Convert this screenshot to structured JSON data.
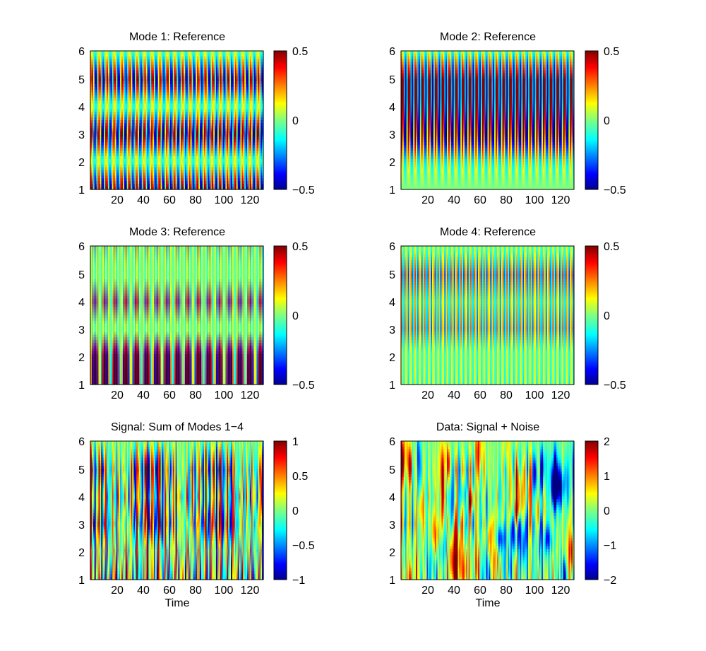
{
  "figure": {
    "background": "#ffffff",
    "colormap": "jet",
    "colormap_stops": [
      "#00008f",
      "#0000ff",
      "#00ffff",
      "#ffff00",
      "#ff0000",
      "#800000"
    ]
  },
  "chart_data": [
    {
      "type": "heatmap",
      "title": "Mode 1: Reference",
      "xlabel": "",
      "x_ticks": [
        "20",
        "40",
        "60",
        "80",
        "100",
        "120"
      ],
      "y_ticks": [
        "1",
        "2",
        "3",
        "4",
        "5",
        "6"
      ],
      "xlim": [
        1,
        128
      ],
      "ylim": [
        1,
        6
      ],
      "colorbar_ticks": [
        "0.5",
        "0",
        "−0.5"
      ],
      "clim": [
        -0.5,
        0.5
      ],
      "pattern": {
        "kind": "mode",
        "period": 5.6,
        "amp": [
          0.55,
          0.1,
          0.6,
          0.1,
          0.55,
          0.1
        ],
        "phase_shift": 0.5
      }
    },
    {
      "type": "heatmap",
      "title": "Mode 2: Reference",
      "xlabel": "",
      "x_ticks": [
        "20",
        "40",
        "60",
        "80",
        "100",
        "120"
      ],
      "y_ticks": [
        "1",
        "2",
        "3",
        "4",
        "5",
        "6"
      ],
      "xlim": [
        1,
        128
      ],
      "ylim": [
        1,
        6
      ],
      "colorbar_ticks": [
        "0.5",
        "0",
        "−0.5"
      ],
      "clim": [
        -0.5,
        0.5
      ],
      "pattern": {
        "kind": "mode",
        "period": 5.0,
        "amp": [
          0.0,
          0.2,
          0.6,
          0.6,
          0.6,
          0.15
        ],
        "phase_shift": 0.3
      }
    },
    {
      "type": "heatmap",
      "title": "Mode 3: Reference",
      "xlabel": "",
      "x_ticks": [
        "20",
        "40",
        "60",
        "80",
        "100",
        "120"
      ],
      "y_ticks": [
        "1",
        "2",
        "3",
        "4",
        "5",
        "6"
      ],
      "xlim": [
        1,
        128
      ],
      "ylim": [
        1,
        6
      ],
      "colorbar_ticks": [
        "0.5",
        "0",
        "−0.5"
      ],
      "clim": [
        -0.5,
        0.5
      ],
      "pattern": {
        "kind": "mode",
        "period": 2.3,
        "amp": [
          0.55,
          0.5,
          0.1,
          0.35,
          0.1,
          0.2
        ],
        "phase_shift": 0.0
      }
    },
    {
      "type": "heatmap",
      "title": "Mode 4: Reference",
      "xlabel": "",
      "x_ticks": [
        "20",
        "40",
        "60",
        "80",
        "100",
        "120"
      ],
      "y_ticks": [
        "1",
        "2",
        "3",
        "4",
        "5",
        "6"
      ],
      "xlim": [
        1,
        128
      ],
      "ylim": [
        1,
        6
      ],
      "colorbar_ticks": [
        "0.5",
        "0",
        "−0.5"
      ],
      "clim": [
        -0.5,
        0.5
      ],
      "pattern": {
        "kind": "mode",
        "period": 3.4,
        "amp": [
          0.15,
          0.1,
          0.3,
          0.2,
          0.35,
          0.1
        ],
        "phase_shift": 0.0
      }
    },
    {
      "type": "heatmap",
      "title": "Signal: Sum of Modes 1−4",
      "xlabel": "Time",
      "x_ticks": [
        "20",
        "40",
        "60",
        "80",
        "100",
        "120"
      ],
      "y_ticks": [
        "1",
        "2",
        "3",
        "4",
        "5",
        "6"
      ],
      "xlim": [
        1,
        128
      ],
      "ylim": [
        1,
        6
      ],
      "colorbar_ticks": [
        "1",
        "0.5",
        "0",
        "−0.5",
        "−1"
      ],
      "clim": [
        -1,
        1
      ],
      "pattern": {
        "kind": "sum"
      }
    },
    {
      "type": "heatmap",
      "title": "Data: Signal + Noise",
      "xlabel": "Time",
      "x_ticks": [
        "20",
        "40",
        "60",
        "80",
        "100",
        "120"
      ],
      "y_ticks": [
        "1",
        "2",
        "3",
        "4",
        "5",
        "6"
      ],
      "xlim": [
        1,
        128
      ],
      "ylim": [
        1,
        6
      ],
      "colorbar_ticks": [
        "2",
        "1",
        "0",
        "−1",
        "−2"
      ],
      "clim": [
        -2,
        2
      ],
      "pattern": {
        "kind": "noisy"
      }
    }
  ]
}
